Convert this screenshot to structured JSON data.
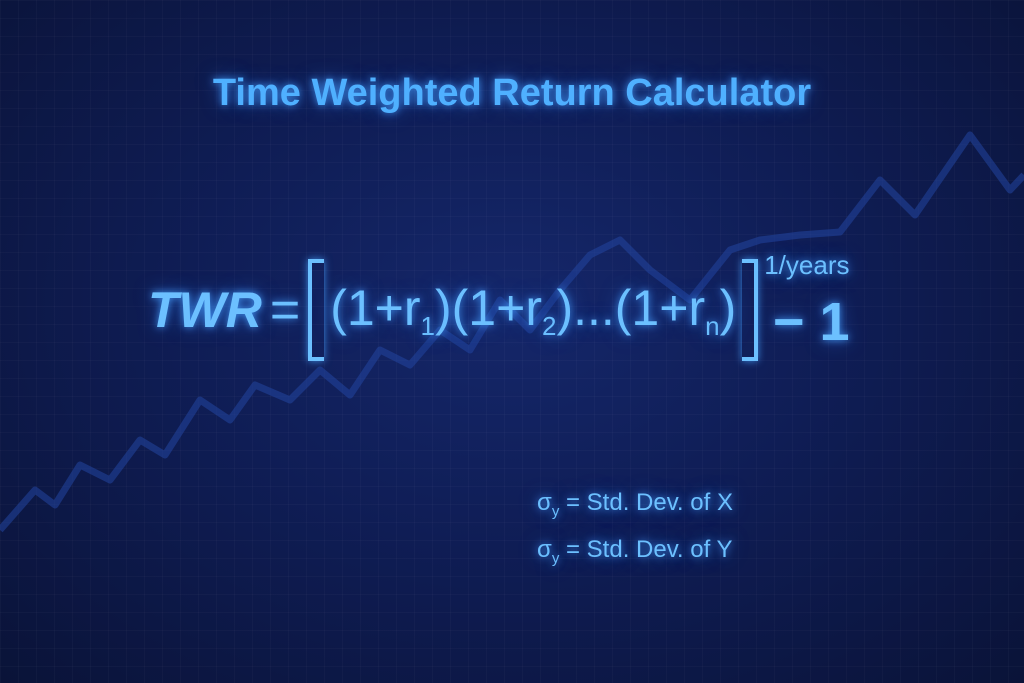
{
  "title": "Time Weighted Return Calculator",
  "formula": {
    "lhs": "TWR",
    "equals": "=",
    "terms": [
      {
        "open": "(1+r",
        "sub": "1",
        "close": ")"
      },
      {
        "open": "(1+r",
        "sub": "2",
        "close": ")"
      },
      {
        "ellipsis": "...",
        "open": "(1+r",
        "sub": "n",
        "close": ")"
      }
    ],
    "exponent": "1/years",
    "tail": "− 1"
  },
  "definitions": [
    {
      "symbol": "σ",
      "sub": "y",
      "text": " = Std. Dev. of X"
    },
    {
      "symbol": "σ",
      "sub": "y",
      "text": " = Std. Dev. of Y"
    }
  ],
  "colors": {
    "background": "#0f1d55",
    "text": "#5cb6ff",
    "line": "#1f3a8a"
  },
  "decoration": "zigzag-trend-line"
}
